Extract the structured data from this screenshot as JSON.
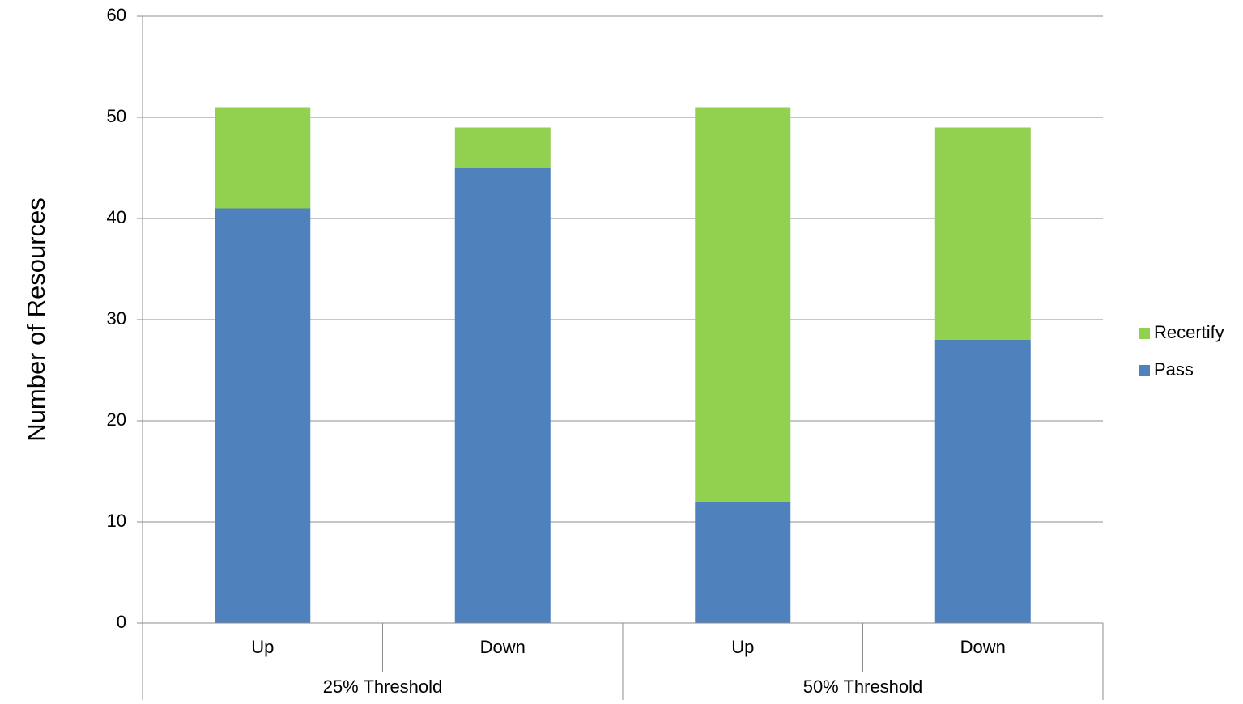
{
  "chart_data": {
    "type": "bar",
    "stacked": true,
    "categories": [
      "Up",
      "Down",
      "Up",
      "Down"
    ],
    "groups": [
      {
        "label": "25% Threshold",
        "categories": [
          "Up",
          "Down"
        ]
      },
      {
        "label": "50% Threshold",
        "categories": [
          "Up",
          "Down"
        ]
      }
    ],
    "series": [
      {
        "name": "Pass",
        "color": "#4F81BD",
        "values": [
          41,
          45,
          12,
          28
        ]
      },
      {
        "name": "Recertify",
        "color": "#92D050",
        "values": [
          10,
          4,
          39,
          21
        ]
      }
    ],
    "title": "",
    "xlabel": "",
    "ylabel": "Number of Resources",
    "ylim": [
      0,
      60
    ],
    "yticks": [
      "0",
      "10",
      "20",
      "30",
      "40",
      "50",
      "60"
    ],
    "grid": true,
    "legend": {
      "position": "right",
      "entries": [
        "Recertify",
        "Pass"
      ]
    }
  }
}
